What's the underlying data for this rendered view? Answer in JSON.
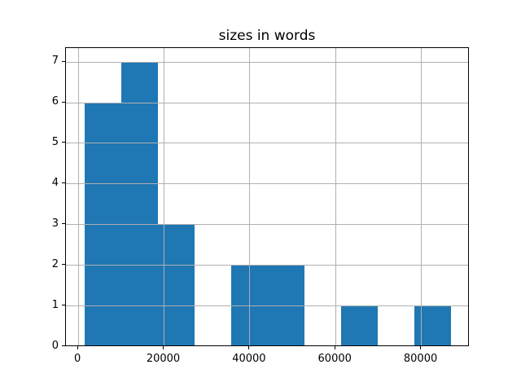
{
  "chart_data": {
    "type": "bar",
    "variant": "histogram",
    "title": "sizes in words",
    "xlabel": "",
    "ylabel": "",
    "bin_edges": [
      1400,
      9960,
      18520,
      27080,
      35640,
      44200,
      52760,
      61320,
      69880,
      78440,
      87000
    ],
    "counts": [
      6,
      7,
      3,
      0,
      2,
      2,
      0,
      1,
      0,
      1
    ],
    "xlim": [
      -2880,
      91280
    ],
    "ylim": [
      0,
      7.35
    ],
    "xticks": {
      "values": [
        0,
        20000,
        40000,
        60000,
        80000
      ],
      "labels": [
        "0",
        "20000",
        "40000",
        "60000",
        "80000"
      ]
    },
    "yticks": {
      "values": [
        0,
        1,
        2,
        3,
        4,
        5,
        6,
        7
      ],
      "labels": [
        "0",
        "1",
        "2",
        "3",
        "4",
        "5",
        "6",
        "7"
      ]
    },
    "grid": true,
    "grid_above_bars": true,
    "legend": "none",
    "colors": {
      "bar": "#1f77b4",
      "grid": "#b0b0b0",
      "spine": "#000000",
      "tick": "#000000",
      "text": "#000000",
      "background": "#ffffff"
    }
  }
}
